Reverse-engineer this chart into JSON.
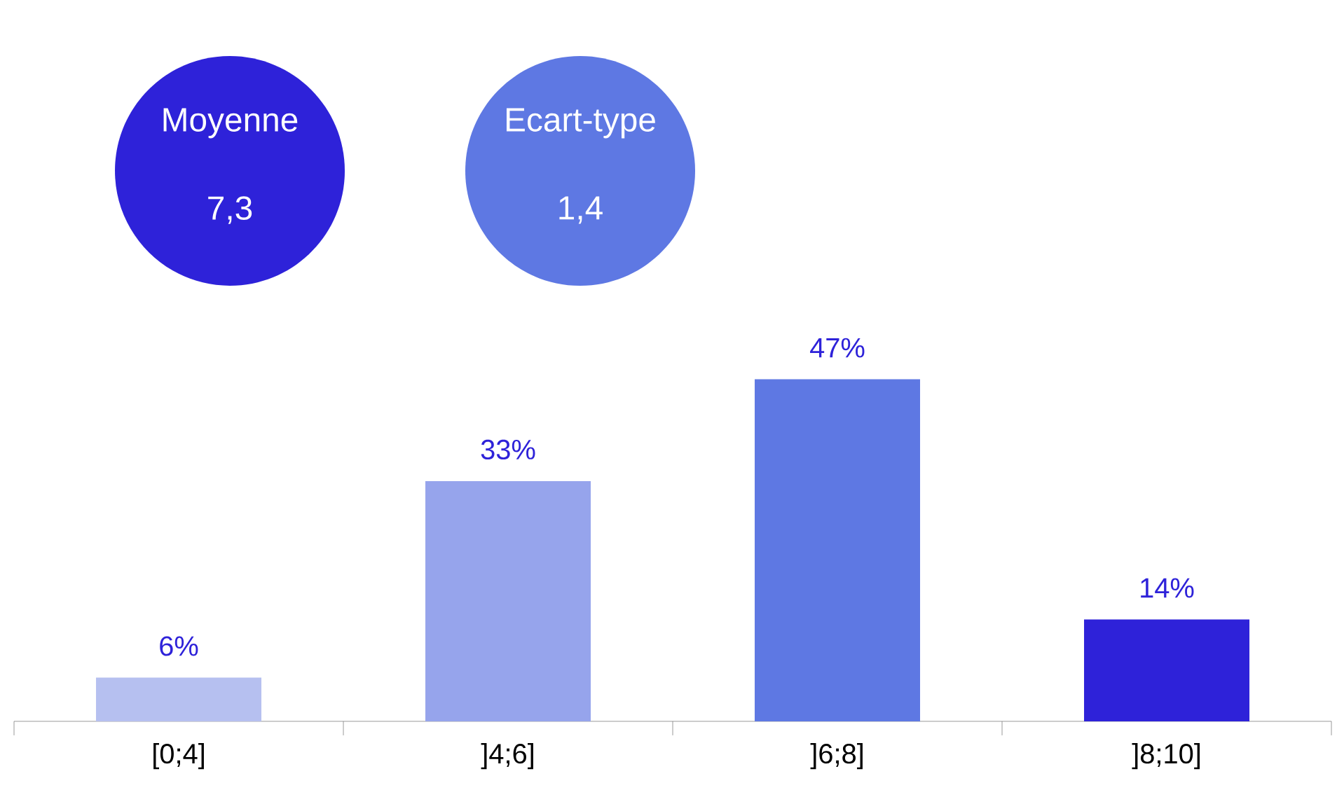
{
  "chart_data": {
    "type": "bar",
    "categories": [
      "[0;4]",
      "]4;6]",
      "]6;8]",
      "]8;10]"
    ],
    "values": [
      6,
      33,
      47,
      14
    ],
    "colors": [
      "#b6c0f0",
      "#96a4ec",
      "#5e78e3",
      "#2e22d9"
    ],
    "value_labels": [
      "6%",
      "33%",
      "47%",
      "14%"
    ],
    "annotations": [
      "Moyenne",
      "7,3",
      "Ecart-type",
      "1,4"
    ]
  }
}
